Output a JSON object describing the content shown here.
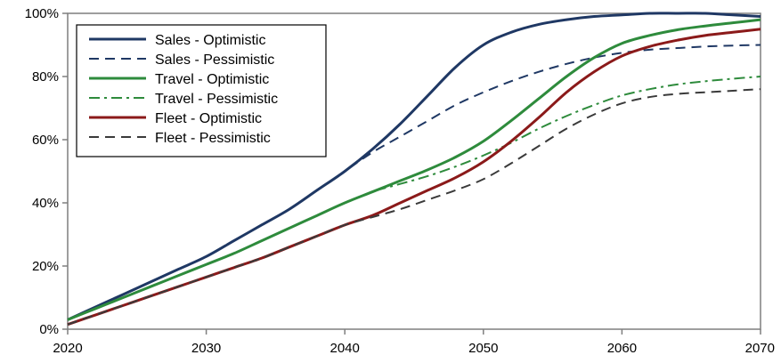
{
  "chart_data": {
    "type": "line",
    "title": "",
    "xlabel": "",
    "ylabel": "",
    "xlim": [
      2020,
      2070
    ],
    "ylim": [
      0,
      100
    ],
    "x_ticks": [
      2020,
      2030,
      2040,
      2050,
      2060,
      2070
    ],
    "x_tick_labels": [
      "2020",
      "2030",
      "2040",
      "2050",
      "2060",
      "2070"
    ],
    "y_ticks": [
      0,
      20,
      40,
      60,
      80,
      100
    ],
    "y_tick_labels": [
      "0%",
      "20%",
      "40%",
      "60%",
      "80%",
      "100%"
    ],
    "grid": false,
    "legend_position": "top-left",
    "x": [
      2020,
      2022,
      2024,
      2026,
      2028,
      2030,
      2032,
      2034,
      2036,
      2038,
      2040,
      2042,
      2044,
      2046,
      2048,
      2050,
      2052,
      2054,
      2056,
      2058,
      2060,
      2062,
      2064,
      2066,
      2068,
      2070
    ],
    "series": [
      {
        "name": "Sales - Optimistic",
        "color": "#1f3864",
        "dash": "solid",
        "values": [
          3,
          7,
          11,
          15,
          19,
          23,
          28,
          33,
          38,
          44,
          50,
          57,
          65,
          74,
          83,
          90,
          94,
          96.5,
          98,
          99,
          99.5,
          100,
          100,
          100,
          99.5,
          99
        ]
      },
      {
        "name": "Sales - Pessimistic",
        "color": "#1f3864",
        "dash": "dashed",
        "values": [
          3,
          7,
          11,
          15,
          19,
          23,
          28,
          33,
          38,
          44,
          50,
          56,
          61,
          66,
          71,
          75,
          78.5,
          81.5,
          84,
          86,
          87.5,
          88.5,
          89,
          89.5,
          89.8,
          90
        ]
      },
      {
        "name": "Travel - Optimistic",
        "color": "#2e8b3c",
        "dash": "solid",
        "values": [
          3,
          6.5,
          10,
          13.5,
          17,
          20.5,
          24,
          28,
          32,
          36,
          40,
          43.5,
          47,
          50.5,
          54.5,
          59.5,
          66,
          73,
          80,
          86,
          90.5,
          93,
          94.8,
          96,
          97,
          98
        ]
      },
      {
        "name": "Travel -  Pessimistic",
        "color": "#2e8b3c",
        "dash": "dashdot",
        "values": [
          3,
          6.5,
          10,
          13.5,
          17,
          20.5,
          24,
          28,
          32,
          36,
          40,
          43.5,
          46,
          48.5,
          51.5,
          55,
          59,
          63.5,
          67.5,
          71,
          74,
          76,
          77.5,
          78.5,
          79.3,
          80
        ]
      },
      {
        "name": "Fleet - Optimistic",
        "color": "#8b1a1a",
        "dash": "solid",
        "values": [
          1.5,
          4.5,
          7.5,
          10.5,
          13.5,
          16.5,
          19.5,
          22.5,
          26,
          29.5,
          33,
          36,
          40,
          44,
          48,
          53,
          59.5,
          67,
          75,
          81.5,
          86.5,
          89.5,
          91.5,
          93,
          94,
          95
        ]
      },
      {
        "name": "Fleet -  Pessimistic",
        "color": "#3a3a3a",
        "dash": "dashed",
        "values": [
          1.5,
          4.5,
          7.5,
          10.5,
          13.5,
          16.5,
          19.5,
          22.5,
          26,
          29.5,
          33,
          35.5,
          38,
          41,
          44,
          47.5,
          52.5,
          58,
          63.5,
          68,
          71.5,
          73.5,
          74.5,
          75,
          75.5,
          76
        ]
      }
    ]
  }
}
